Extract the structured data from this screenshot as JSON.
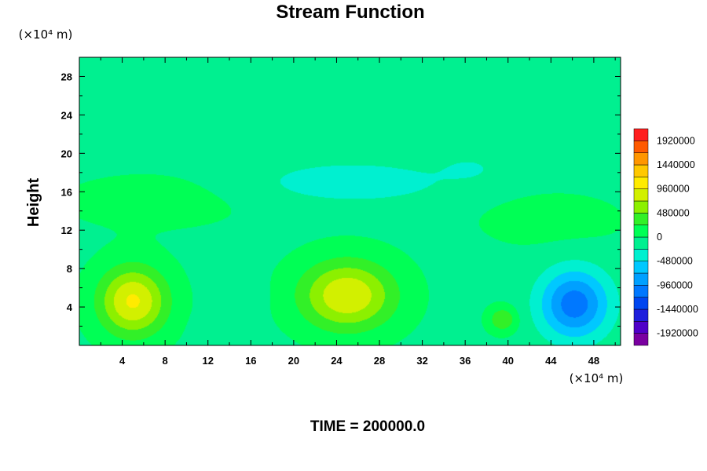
{
  "chart_data": {
    "type": "heatmap",
    "title": "Stream Function",
    "ylabel": "Height",
    "xlabel": "",
    "x_unit": "(×10⁴ m)",
    "y_unit": "(×10⁴ m)",
    "xlim": [
      0,
      50.5
    ],
    "ylim": [
      0,
      30
    ],
    "x_ticks": [
      4,
      8,
      12,
      16,
      20,
      24,
      28,
      32,
      36,
      40,
      44,
      48
    ],
    "y_ticks": [
      4,
      8,
      12,
      16,
      20,
      24,
      28
    ],
    "colorbar": {
      "range": [
        -2160000,
        2160000
      ],
      "step": 240000,
      "tick_values": [
        1920000,
        1440000,
        960000,
        480000,
        0,
        -480000,
        -960000,
        -1440000,
        -1920000
      ],
      "tick_labels": [
        "1920000",
        "1440000",
        "960000",
        "480000",
        "0",
        "-480000",
        "-960000",
        "-1440000",
        "-1920000"
      ]
    },
    "features": [
      {
        "kind": "max",
        "x": 5.0,
        "y": 4.6,
        "value": 1050000,
        "sx": 3.2,
        "sy": 3.6
      },
      {
        "kind": "max",
        "x": 25.0,
        "y": 5.2,
        "value": 1000000,
        "sx": 4.4,
        "sy": 3.6
      },
      {
        "kind": "min",
        "x": 46.2,
        "y": 4.3,
        "value": -1060000,
        "sx": 3.2,
        "sy": 3.6
      },
      {
        "kind": "max",
        "x": 39.5,
        "y": 2.7,
        "value": 520000,
        "sx": 1.3,
        "sy": 1.3
      },
      {
        "kind": "min",
        "x": 12.8,
        "y": 1.6,
        "value": -180000,
        "sx": 1.6,
        "sy": 1.4
      },
      {
        "kind": "min",
        "x": 15.5,
        "y": 5.2,
        "value": -150000,
        "sx": 1.6,
        "sy": 2.0
      },
      {
        "kind": "min",
        "x": 25.5,
        "y": 17.0,
        "value": -360000,
        "sx": 9.0,
        "sy": 2.2
      },
      {
        "kind": "min",
        "x": 36.5,
        "y": 18.5,
        "value": -180000,
        "sx": 3.0,
        "sy": 1.5
      },
      {
        "kind": "max",
        "x": 7.0,
        "y": 15.0,
        "value": 130000,
        "sx": 9.0,
        "sy": 3.0
      },
      {
        "kind": "max",
        "x": 44.0,
        "y": 13.0,
        "value": 130000,
        "sx": 7.0,
        "sy": 3.0
      }
    ]
  },
  "footer": {
    "time_label": "TIME = 200000.0"
  }
}
